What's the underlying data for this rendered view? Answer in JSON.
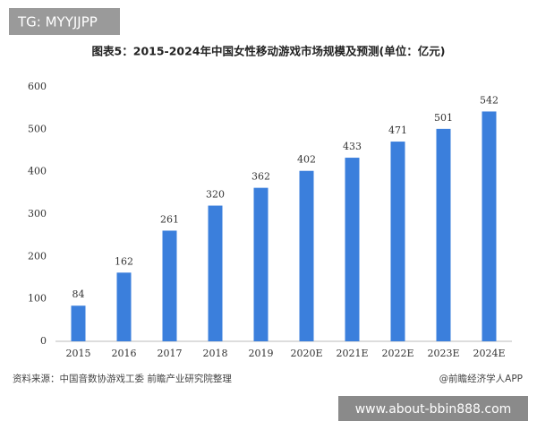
{
  "chart_data": {
    "type": "bar",
    "title": "图表5：2015-2024年中国女性移动游戏市场规模及预测(单位：亿元)",
    "categories": [
      "2015",
      "2016",
      "2017",
      "2018",
      "2019",
      "2020E",
      "2021E",
      "2022E",
      "2023E",
      "2024E"
    ],
    "values": [
      84,
      162,
      261,
      320,
      362,
      402,
      433,
      471,
      501,
      542
    ],
    "color": "#3b7fdc",
    "ylim": [
      0,
      600
    ],
    "yticks": [
      0,
      100,
      200,
      300,
      400,
      500,
      600
    ],
    "grid": false,
    "source": "资料来源：中国音数协游戏工委 前瞻产业研究院整理",
    "credit": "@前瞻经济学人APP"
  },
  "overlay": {
    "top_label": "TG: MYYJJPP",
    "watermark": "www.about-bbin888.com"
  }
}
